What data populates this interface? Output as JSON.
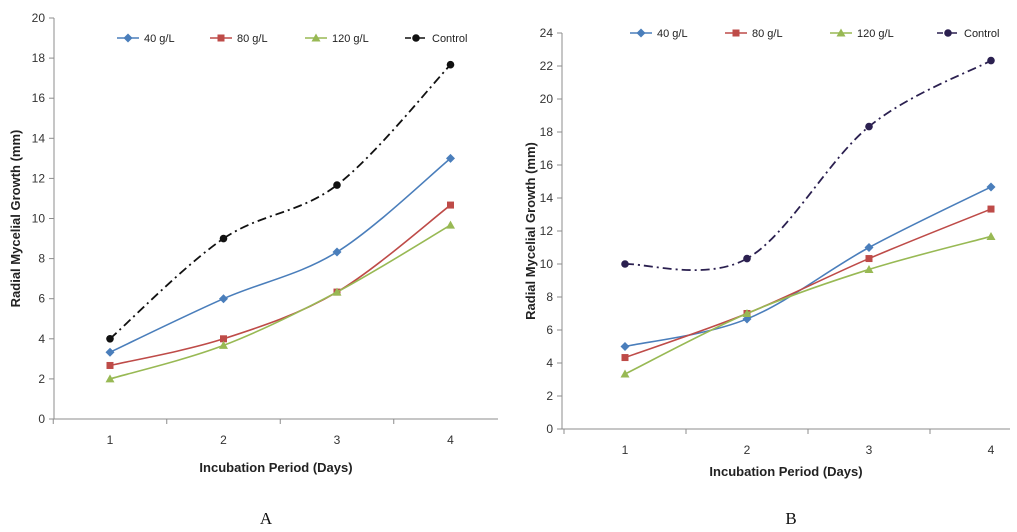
{
  "panel_labels": [
    "A",
    "B"
  ],
  "chart_data": [
    {
      "type": "line",
      "panel": "A",
      "x": [
        1,
        2,
        3,
        4
      ],
      "xlabel": "Incubation Period (Days)",
      "ylabel": "Radial Mycelial Growth (mm)",
      "ylim": [
        0,
        20
      ],
      "yticks": [
        0,
        2,
        4,
        6,
        8,
        10,
        12,
        14,
        16,
        18,
        20
      ],
      "grid": false,
      "legend_position": "top",
      "series": [
        {
          "name": "40 g/L",
          "values": [
            3.33,
            6.0,
            8.33,
            13.0
          ],
          "color": "#4a7ebb",
          "marker": "diamond",
          "dash": "solid"
        },
        {
          "name": "80 g/L",
          "values": [
            2.67,
            4.0,
            6.33,
            10.67
          ],
          "color": "#be4b48",
          "marker": "square",
          "dash": "solid"
        },
        {
          "name": "120 g/L",
          "values": [
            2.0,
            3.67,
            6.33,
            9.67
          ],
          "color": "#98b954",
          "marker": "triangle",
          "dash": "solid"
        },
        {
          "name": "Control",
          "values": [
            4.0,
            9.0,
            11.67,
            17.67
          ],
          "color": "#111111",
          "marker": "circle",
          "dash": "dashdot"
        }
      ]
    },
    {
      "type": "line",
      "panel": "B",
      "x": [
        1,
        2,
        3,
        4
      ],
      "xlabel": "Incubation Period (Days)",
      "ylabel": "Radial Mycelial Growth (mm)",
      "ylim": [
        0,
        24
      ],
      "yticks": [
        0,
        2,
        4,
        6,
        8,
        10,
        12,
        14,
        16,
        18,
        20,
        22,
        24
      ],
      "grid": false,
      "legend_position": "top",
      "series": [
        {
          "name": "40 g/L",
          "values": [
            5.0,
            6.67,
            11.0,
            14.67
          ],
          "color": "#4a7ebb",
          "marker": "diamond",
          "dash": "solid"
        },
        {
          "name": "80 g/L",
          "values": [
            4.33,
            7.0,
            10.33,
            13.33
          ],
          "color": "#be4b48",
          "marker": "square",
          "dash": "solid"
        },
        {
          "name": "120 g/L",
          "values": [
            3.33,
            7.0,
            9.67,
            11.67
          ],
          "color": "#98b954",
          "marker": "triangle",
          "dash": "solid"
        },
        {
          "name": "Control",
          "values": [
            10.0,
            10.33,
            18.33,
            22.33
          ],
          "color": "#2b2050",
          "marker": "circle",
          "dash": "dashdot"
        }
      ]
    }
  ]
}
